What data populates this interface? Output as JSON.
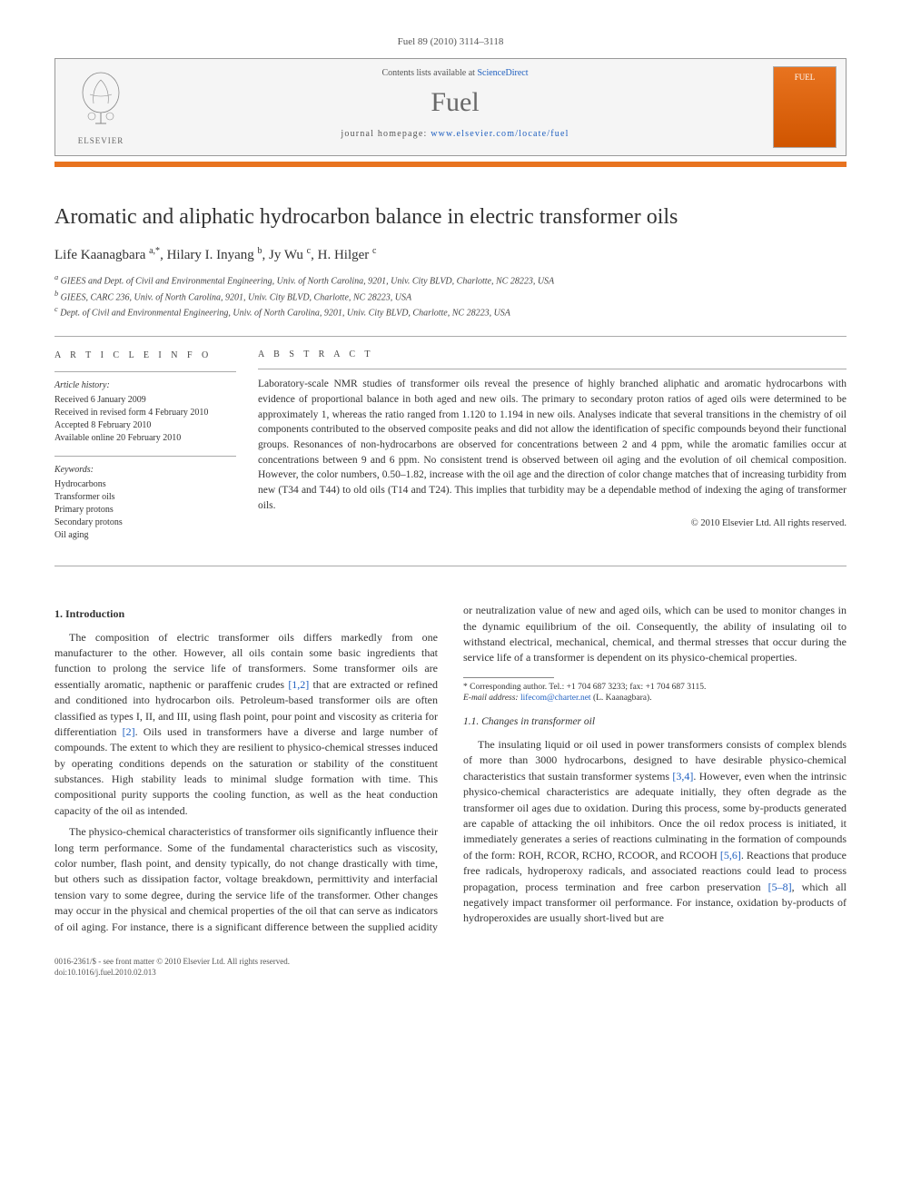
{
  "citation": "Fuel 89 (2010) 3114–3118",
  "banner": {
    "publisher": "ELSEVIER",
    "contents_prefix": "Contents lists available at ",
    "contents_link": "ScienceDirect",
    "journal": "Fuel",
    "homepage_prefix": "journal homepage: ",
    "homepage_url": "www.elsevier.com/locate/fuel",
    "cover_label": "FUEL"
  },
  "title": "Aromatic and aliphatic hydrocarbon balance in electric transformer oils",
  "authors_html": "Life Kaanagbara <sup>a,*</sup>, Hilary I. Inyang <sup>b</sup>, Jy Wu <sup>c</sup>, H. Hilger <sup>c</sup>",
  "affiliations": {
    "a": "GIEES and Dept. of Civil and Environmental Engineering, Univ. of North Carolina, 9201, Univ. City BLVD, Charlotte, NC 28223, USA",
    "b": "GIEES, CARC 236, Univ. of North Carolina, 9201, Univ. City BLVD, Charlotte, NC 28223, USA",
    "c": "Dept. of Civil and Environmental Engineering, Univ. of North Carolina, 9201, Univ. City BLVD, Charlotte, NC 28223, USA"
  },
  "info": {
    "heading": "A R T I C L E   I N F O",
    "history_label": "Article history:",
    "history": [
      "Received 6 January 2009",
      "Received in revised form 4 February 2010",
      "Accepted 8 February 2010",
      "Available online 20 February 2010"
    ],
    "keywords_label": "Keywords:",
    "keywords": [
      "Hydrocarbons",
      "Transformer oils",
      "Primary protons",
      "Secondary protons",
      "Oil aging"
    ]
  },
  "abstract": {
    "heading": "A B S T R A C T",
    "text": "Laboratory-scale NMR studies of transformer oils reveal the presence of highly branched aliphatic and aromatic hydrocarbons with evidence of proportional balance in both aged and new oils. The primary to secondary proton ratios of aged oils were determined to be approximately 1, whereas the ratio ranged from 1.120 to 1.194 in new oils. Analyses indicate that several transitions in the chemistry of oil components contributed to the observed composite peaks and did not allow the identification of specific compounds beyond their functional groups. Resonances of non-hydrocarbons are observed for concentrations between 2 and 4 ppm, while the aromatic families occur at concentrations between 9 and 6 ppm. No consistent trend is observed between oil aging and the evolution of oil chemical composition. However, the color numbers, 0.50–1.82, increase with the oil age and the direction of color change matches that of increasing turbidity from new (T34 and T44) to old oils (T14 and T24). This implies that turbidity may be a dependable method of indexing the aging of transformer oils.",
    "copyright": "© 2010 Elsevier Ltd. All rights reserved."
  },
  "section1": {
    "heading": "1. Introduction",
    "p1_a": "The composition of electric transformer oils differs markedly from one manufacturer to the other. However, all oils contain some basic ingredients that function to prolong the service life of transformers. Some transformer oils are essentially aromatic, napthenic or paraffenic crudes ",
    "p1_ref1": "[1,2]",
    "p1_b": " that are extracted or refined and conditioned into hydrocarbon oils. Petroleum-based transformer oils are often classified as types I, II, and III, using flash point, pour point and viscosity as criteria for differentiation ",
    "p1_ref2": "[2]",
    "p1_c": ". Oils used in transformers have a diverse and large number of compounds. The extent to which they are resilient to physico-chemical stresses induced by operating conditions depends on the saturation or stability of the constituent substances. High stability leads to minimal sludge formation with time. This compositional purity supports the cooling function, as well as the heat conduction capacity of the oil as intended.",
    "p2": "The physico-chemical characteristics of transformer oils significantly influence their long term performance. Some of the fundamental characteristics such as viscosity, color number, flash point, and density typically, do not change drastically with time, but others such as dissipation factor, voltage breakdown, permittivity and interfacial tension vary to some degree, during the service life of the transformer. Other changes may occur in the physical and chemical properties of the oil that can serve as indicators of oil aging. For instance, there is a significant difference between the supplied acidity or neutralization value of new and aged oils, which can be used to monitor changes in the dynamic equilibrium of the oil. Consequently, the ability of insulating oil to withstand electrical, mechanical, chemical, and thermal stresses that occur during the service life of a transformer is dependent on its physico-chemical properties."
  },
  "section11": {
    "heading": "1.1. Changes in transformer oil",
    "p1_a": "The insulating liquid or oil used in power transformers consists of complex blends of more than 3000 hydrocarbons, designed to have desirable physico-chemical characteristics that sustain transformer systems ",
    "p1_ref1": "[3,4]",
    "p1_b": ". However, even when the intrinsic physico-chemical characteristics are adequate initially, they often degrade as the transformer oil ages due to oxidation. During this process, some by-products generated are capable of attacking the oil inhibitors. Once the oil redox process is initiated, it immediately generates a series of reactions culminating in the formation of compounds of the form: ROH, RCOR, RCHO, RCOOR, and RCOOH ",
    "p1_ref2": "[5,6]",
    "p1_c": ". Reactions that produce free radicals, hydroperoxy radicals, and associated reactions could lead to process propagation, process termination and free carbon preservation ",
    "p1_ref3": "[5–8]",
    "p1_d": ", which all negatively impact transformer oil performance. For instance, oxidation by-products of hydroperoxides are usually short-lived but are"
  },
  "footnote": {
    "corr": "* Corresponding author. Tel.: +1 704 687 3233; fax: +1 704 687 3115.",
    "email_label": "E-mail address:",
    "email": "lifecom@charter.net",
    "email_name": "(L. Kaanagbara)."
  },
  "footer": {
    "line1": "0016-2361/$ - see front matter © 2010 Elsevier Ltd. All rights reserved.",
    "line2": "doi:10.1016/j.fuel.2010.02.013"
  },
  "colors": {
    "orange": "#e8731f",
    "link": "#2060c0",
    "text": "#333333"
  }
}
